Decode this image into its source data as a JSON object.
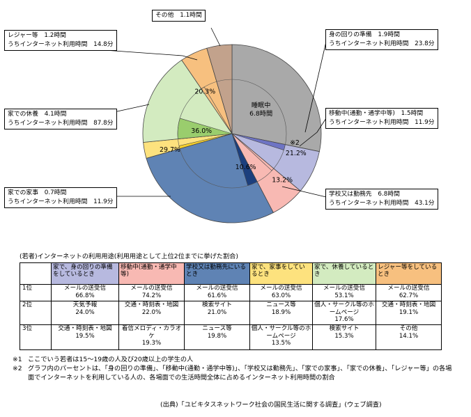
{
  "chart_data": {
    "type": "pie",
    "unit": "時間",
    "slices": [
      {
        "label": "睡眠中",
        "value": 6.8,
        "value_text": "6.8時間",
        "color": "#a9a9a9",
        "inner_share": null,
        "inner_text": ""
      },
      {
        "label": "身の回りの準備",
        "value": 1.9,
        "value_text": "",
        "color": "#b7b9df",
        "inner_share": 0.212,
        "inner_text": "21.2%",
        "inner_color": "#6e74c4"
      },
      {
        "label": "移動中(通勤・通学中等)",
        "value": 1.5,
        "value_text": "",
        "color": "#f8b9b3",
        "inner_share": 0.132,
        "inner_text": "13.2%",
        "inner_color": "#f8b9b3"
      },
      {
        "label": "学校又は勤務先",
        "value": 6.8,
        "value_text": "",
        "color": "#5f83b4",
        "inner_share": 0.106,
        "inner_text": "10.6%",
        "inner_color": "#1c3f7d"
      },
      {
        "label": "家での家事",
        "value": 0.7,
        "value_text": "",
        "color": "#fde27e",
        "inner_share": 0.297,
        "inner_text": "29.7%",
        "inner_color": "#f5cf2c"
      },
      {
        "label": "家での休養",
        "value": 4.1,
        "value_text": "",
        "color": "#d3ebc0",
        "inner_share": 0.36,
        "inner_text": "36.0%",
        "inner_color": "#9acd6d"
      },
      {
        "label": "レジャー等",
        "value": 1.2,
        "value_text": "",
        "color": "#f7c07f",
        "inner_share": 0.203,
        "inner_text": "20.3%",
        "inner_color": "#f7c07f"
      },
      {
        "label": "その他",
        "value": 1.1,
        "value_text": "",
        "color": "#c2a28c",
        "inner_share": null,
        "inner_text": ""
      }
    ],
    "callouts": {
      "other": {
        "line1": "その他　1.1時間",
        "line2": ""
      },
      "leisure": {
        "line1": "レジャー等　1.2時間",
        "line2": "うちインターネット利用時間　14.8分"
      },
      "rest": {
        "line1": "家での休養　4.1時間",
        "line2": "うちインターネット利用時間　87.8分"
      },
      "house": {
        "line1": "家での家事　0.7時間",
        "line2": "うちインターネット利用時間　11.9分"
      },
      "prep": {
        "line1": "身の回りの準備　1.9時間",
        "line2": "うちインターネット利用時間　23.8分"
      },
      "move": {
        "line1": "移動中(通勤・通学中等)　1.5時間",
        "line2": "うちインターネット利用時間　11.9分"
      },
      "school": {
        "line1": "学校又は勤務先　6.8時間",
        "line2": "うちインターネット利用時間　43.1分"
      }
    },
    "note_mark_on_chart": "※2"
  },
  "table": {
    "caption": "(若者)インターネットの利用用途(利用用途として上位2位までに挙げた割合)",
    "headers": [
      {
        "text": "家で、身の回りの準備をしているとき",
        "color": "#b7b9df"
      },
      {
        "text": "移動中(通勤・通学中等)",
        "color": "#f8b9b3"
      },
      {
        "text": "学校又は勤務先にいるとき",
        "color": "#5f83b4"
      },
      {
        "text": "家で、家事をしているとき",
        "color": "#fde27e"
      },
      {
        "text": "家で、休養しているとき",
        "color": "#d3ebc0"
      },
      {
        "text": "レジャー等をしているとき",
        "color": "#f7c07f"
      }
    ],
    "rows": [
      {
        "rank": "1位",
        "cells": [
          {
            "name": "メールの送受信",
            "pct": "66.8%"
          },
          {
            "name": "メールの送受信",
            "pct": "74.2%"
          },
          {
            "name": "メールの送受信",
            "pct": "61.6%"
          },
          {
            "name": "メールの送受信",
            "pct": "63.0%"
          },
          {
            "name": "メールの送受信",
            "pct": "53.1%"
          },
          {
            "name": "メールの送受信",
            "pct": "62.7%"
          }
        ]
      },
      {
        "rank": "2位",
        "cells": [
          {
            "name": "天気予報",
            "pct": "24.0%"
          },
          {
            "name": "交通・時刻表・地図",
            "pct": "22.0%"
          },
          {
            "name": "検索サイト",
            "pct": "21.0%"
          },
          {
            "name": "ニュース等",
            "pct": "18.9%"
          },
          {
            "name": "個人・サークル等のホームページ",
            "pct": "17.6%"
          },
          {
            "name": "交通・時刻表・地図",
            "pct": "19.1%"
          }
        ]
      },
      {
        "rank": "3位",
        "cells": [
          {
            "name": "交通・時刻表・地図",
            "pct": "19.5%"
          },
          {
            "name": "着信メロディ・カラオケ",
            "pct": "19.3%"
          },
          {
            "name": "ニュース等",
            "pct": "19.8%"
          },
          {
            "name": "個人・サークル等のホームページ",
            "pct": "13.5%"
          },
          {
            "name": "検索サイト",
            "pct": "15.3%"
          },
          {
            "name": "その他",
            "pct": "14.1%"
          }
        ]
      }
    ]
  },
  "notes": [
    {
      "mark": "※1",
      "text": "ここでいう若者は15～19歳の人及び20歳以上の学生の人"
    },
    {
      "mark": "※2",
      "text": "グラフ内のパーセントは、「身の回りの準備」、「移動中(通勤・通学中等)」、「学校又は勤務先」、「家での家事」、「家での休養」、「レジャー等」の各場面でインターネットを利用している人の、各場面での生活時間全体に占めるインターネット利用時間の割合"
    }
  ],
  "source": "(出典)「ユビキタスネットワーク社会の国民生活に関する調査」(ウェブ調査)"
}
